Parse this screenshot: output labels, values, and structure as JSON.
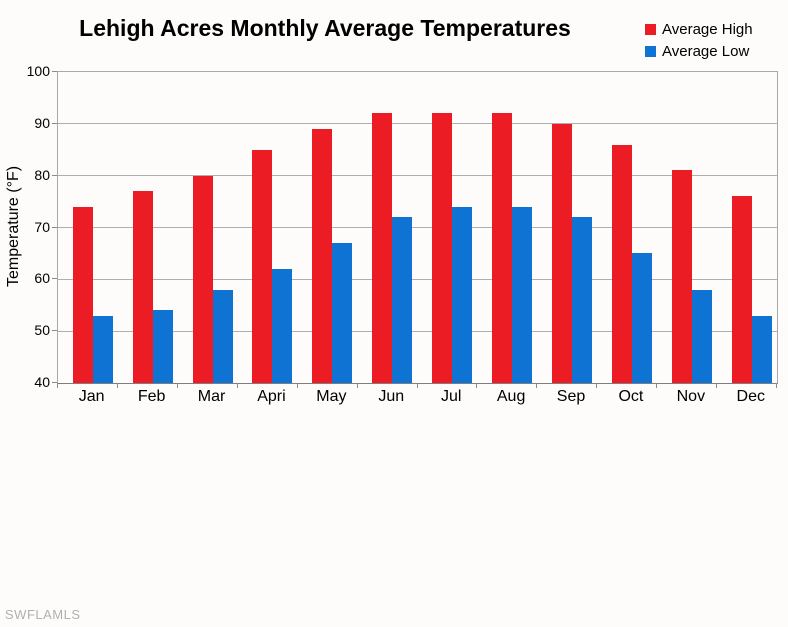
{
  "title": "Lehigh Acres Monthly Average Temperatures",
  "watermark": "SWFLAMLS",
  "legend": {
    "items": [
      {
        "label": "Average High",
        "color": "#EC1C24"
      },
      {
        "label": "Average Low",
        "color": "#0F73D4"
      }
    ]
  },
  "chart_data": {
    "type": "bar",
    "title": "Lehigh Acres Monthly Average Temperatures",
    "categories": [
      "Jan",
      "Feb",
      "Mar",
      "Apri",
      "May",
      "Jun",
      "Jul",
      "Aug",
      "Sep",
      "Oct",
      "Nov",
      "Dec"
    ],
    "series": [
      {
        "name": "Average High",
        "color": "#EC1C24",
        "values": [
          74,
          77,
          80,
          85,
          89,
          92,
          92,
          92,
          90,
          86,
          81,
          76
        ]
      },
      {
        "name": "Average Low",
        "color": "#0F73D4",
        "values": [
          53,
          54,
          58,
          62,
          67,
          72,
          74,
          74,
          72,
          65,
          58,
          53
        ]
      }
    ],
    "xlabel": "",
    "ylabel": "Temperature (°F)",
    "ylim": [
      40,
      100
    ],
    "yticks": [
      40,
      50,
      60,
      70,
      80,
      90,
      100
    ],
    "grid": true,
    "legend_position": "top-right"
  },
  "colors": {
    "grid": "#AFAFAF",
    "plot_border": "#A8A8A8",
    "axis": "#7E7E7E",
    "background": "#FDFCFA",
    "watermark_text": "#B2B0AD"
  }
}
